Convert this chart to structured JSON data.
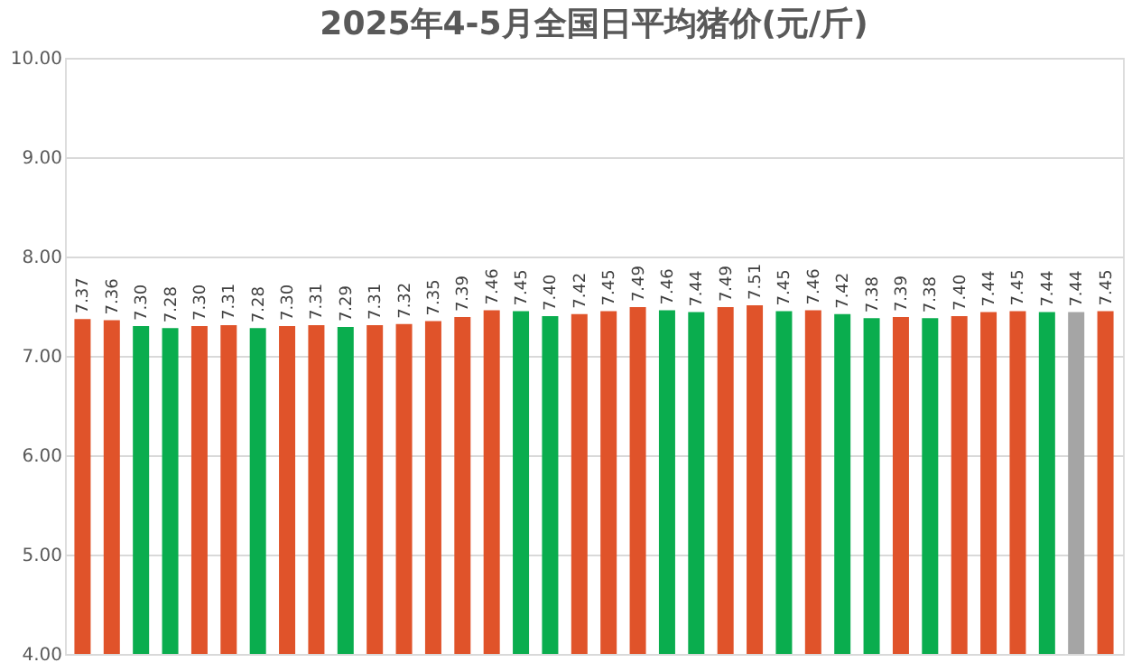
{
  "chart_data": {
    "type": "bar",
    "title": "2025年4-5月全国日平均猪价(元/斤)",
    "categories": [
      null,
      null,
      null,
      null,
      null,
      null,
      null,
      null,
      null,
      null,
      null,
      null,
      null,
      null,
      null,
      null,
      null,
      null,
      null,
      null,
      null,
      null,
      null,
      null,
      null,
      null,
      null,
      null,
      null,
      null,
      null,
      null,
      null,
      null,
      null,
      null
    ],
    "values": [
      7.37,
      7.36,
      7.3,
      7.28,
      7.3,
      7.31,
      7.28,
      7.3,
      7.31,
      7.29,
      7.31,
      7.32,
      7.35,
      7.39,
      7.46,
      7.45,
      7.4,
      7.42,
      7.45,
      7.49,
      7.46,
      7.44,
      7.49,
      7.51,
      7.45,
      7.46,
      7.42,
      7.38,
      7.39,
      7.38,
      7.4,
      7.44,
      7.45,
      7.44,
      7.44,
      7.45
    ],
    "colors": [
      "#e0532a",
      "#e0532a",
      "#0aad4e",
      "#0aad4e",
      "#e0532a",
      "#e0532a",
      "#0aad4e",
      "#e0532a",
      "#e0532a",
      "#0aad4e",
      "#e0532a",
      "#e0532a",
      "#e0532a",
      "#e0532a",
      "#e0532a",
      "#0aad4e",
      "#0aad4e",
      "#e0532a",
      "#e0532a",
      "#e0532a",
      "#0aad4e",
      "#0aad4e",
      "#e0532a",
      "#e0532a",
      "#0aad4e",
      "#e0532a",
      "#0aad4e",
      "#0aad4e",
      "#e0532a",
      "#0aad4e",
      "#e0532a",
      "#e0532a",
      "#e0532a",
      "#0aad4e",
      "#a5a5a5",
      "#e0532a"
    ],
    "value_labels": [
      "7.37",
      "7.36",
      "7.30",
      "7.28",
      "7.30",
      "7.31",
      "7.28",
      "7.30",
      "7.31",
      "7.29",
      "7.31",
      "7.32",
      "7.35",
      "7.39",
      "7.46",
      "7.45",
      "7.40",
      "7.42",
      "7.45",
      "7.49",
      "7.46",
      "7.44",
      "7.49",
      "7.51",
      "7.45",
      "7.46",
      "7.42",
      "7.38",
      "7.39",
      "7.38",
      "7.40",
      "7.44",
      "7.45",
      "7.44",
      "7.44",
      "7.45"
    ],
    "ylim": [
      4,
      10
    ],
    "yticks": [
      {
        "value": 4,
        "label": "4.00"
      },
      {
        "value": 5,
        "label": "5.00"
      },
      {
        "value": 6,
        "label": "6.00"
      },
      {
        "value": 7,
        "label": "7.00"
      },
      {
        "value": 8,
        "label": "8.00"
      },
      {
        "value": 9,
        "label": "9.00"
      },
      {
        "value": 10,
        "label": "10.00"
      }
    ],
    "grid": "y",
    "tick_labels": "y"
  }
}
